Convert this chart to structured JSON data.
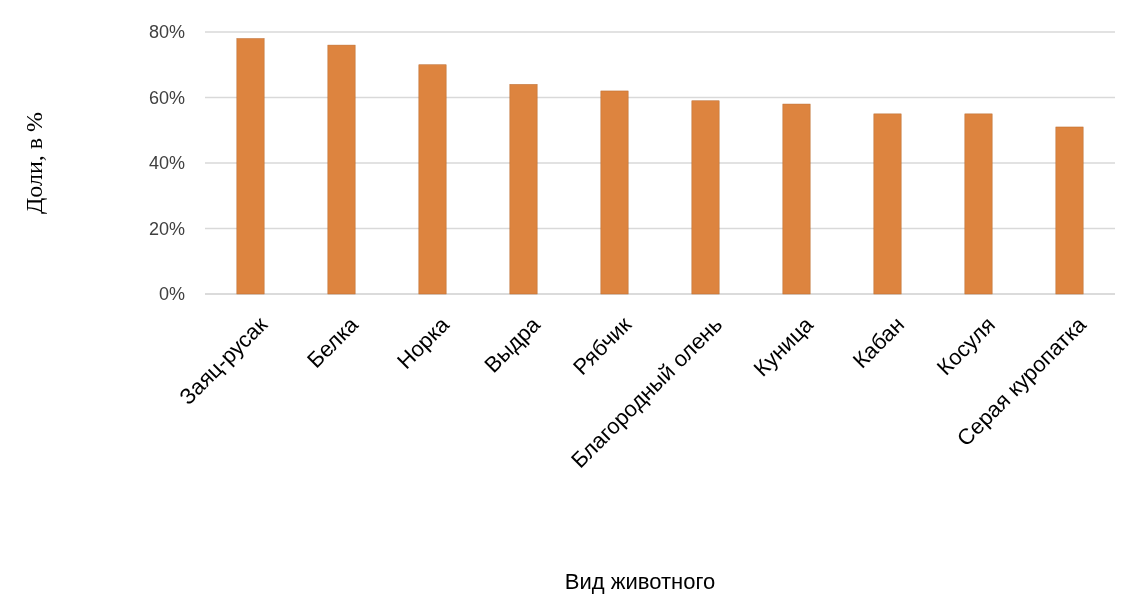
{
  "chart_data": {
    "type": "bar",
    "xlabel": "Вид животного",
    "ylabel": "Доли, в %",
    "categories": [
      "Заяц-русак",
      "Белка",
      "Норка",
      "Выдра",
      "Рябчик",
      "Благородный олень",
      "Куница",
      "Кабан",
      "Косуля",
      "Серая куропатка"
    ],
    "values": [
      78,
      76,
      70,
      64,
      62,
      59,
      58,
      55,
      55,
      51
    ],
    "color": "#dd843f",
    "ylim": [
      0,
      80
    ],
    "yticks": [
      {
        "value": 0,
        "label": "0%"
      },
      {
        "value": 20,
        "label": "20%"
      },
      {
        "value": 40,
        "label": "40%"
      },
      {
        "value": 60,
        "label": "60%"
      },
      {
        "value": 80,
        "label": "80%"
      }
    ],
    "grid": true
  }
}
